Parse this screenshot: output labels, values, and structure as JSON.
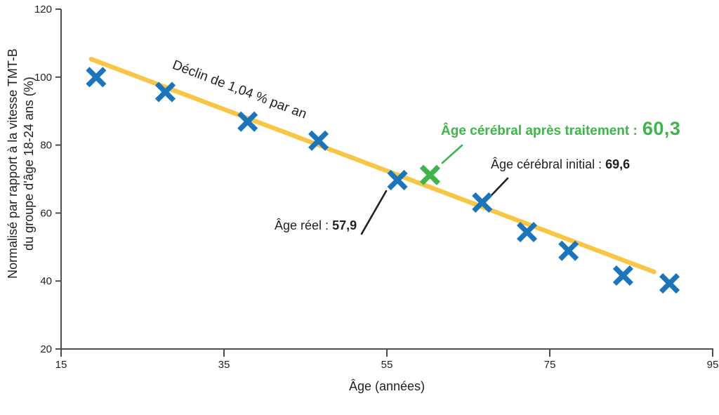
{
  "chart_data": {
    "type": "scatter",
    "title": "",
    "xlabel": "Âge (années)",
    "ylabel_lines": [
      "Normalisé par rapport à la vitesse TMT-B",
      "du groupe d'âge 18-24 ans (%)"
    ],
    "xlim": [
      15,
      95
    ],
    "ylim": [
      20,
      120
    ],
    "x_ticks": [
      "15",
      "35",
      "55",
      "75",
      "95"
    ],
    "y_ticks": [
      "20",
      "40",
      "60",
      "80",
      "100",
      "120"
    ],
    "grid": false,
    "legend": "none",
    "series": [
      {
        "name": "vitesse-tmtb-mesures",
        "color": "#1B75BC",
        "points": [
          [
            19.3,
            100.0
          ],
          [
            27.8,
            95.6
          ],
          [
            37.9,
            86.9
          ],
          [
            46.6,
            81.3
          ],
          [
            56.3,
            69.7
          ],
          [
            66.7,
            63.1
          ],
          [
            72.2,
            54.4
          ],
          [
            77.3,
            48.9
          ],
          [
            84.0,
            41.6
          ],
          [
            89.7,
            39.3
          ]
        ]
      },
      {
        "name": "age-cerebral-apres-traitement",
        "color": "#3DB54A",
        "points": [
          [
            60.3,
            71.2
          ]
        ]
      }
    ],
    "trend_line": {
      "color": "#F6C644",
      "from": [
        18.7,
        105.3
      ],
      "to": [
        87.8,
        42.7
      ],
      "label": "Déclin de 1,04 % par an"
    },
    "annotations": {
      "decline": {
        "label": "Déclin de 1,04 % par an"
      },
      "real_age": {
        "label": "Âge réel :",
        "value": "57,9"
      },
      "initial_brain_age": {
        "label": "Âge cérébral initial :",
        "value": "69,6"
      },
      "treated_brain_age": {
        "label": "Âge cérébral après traitement :",
        "value": "60,3"
      }
    },
    "colors": {
      "data_points": "#1B75BC",
      "treated_point": "#3DB54A",
      "trend_line": "#F6C644",
      "text": "#231F20",
      "axis": "#4D4E50"
    }
  }
}
